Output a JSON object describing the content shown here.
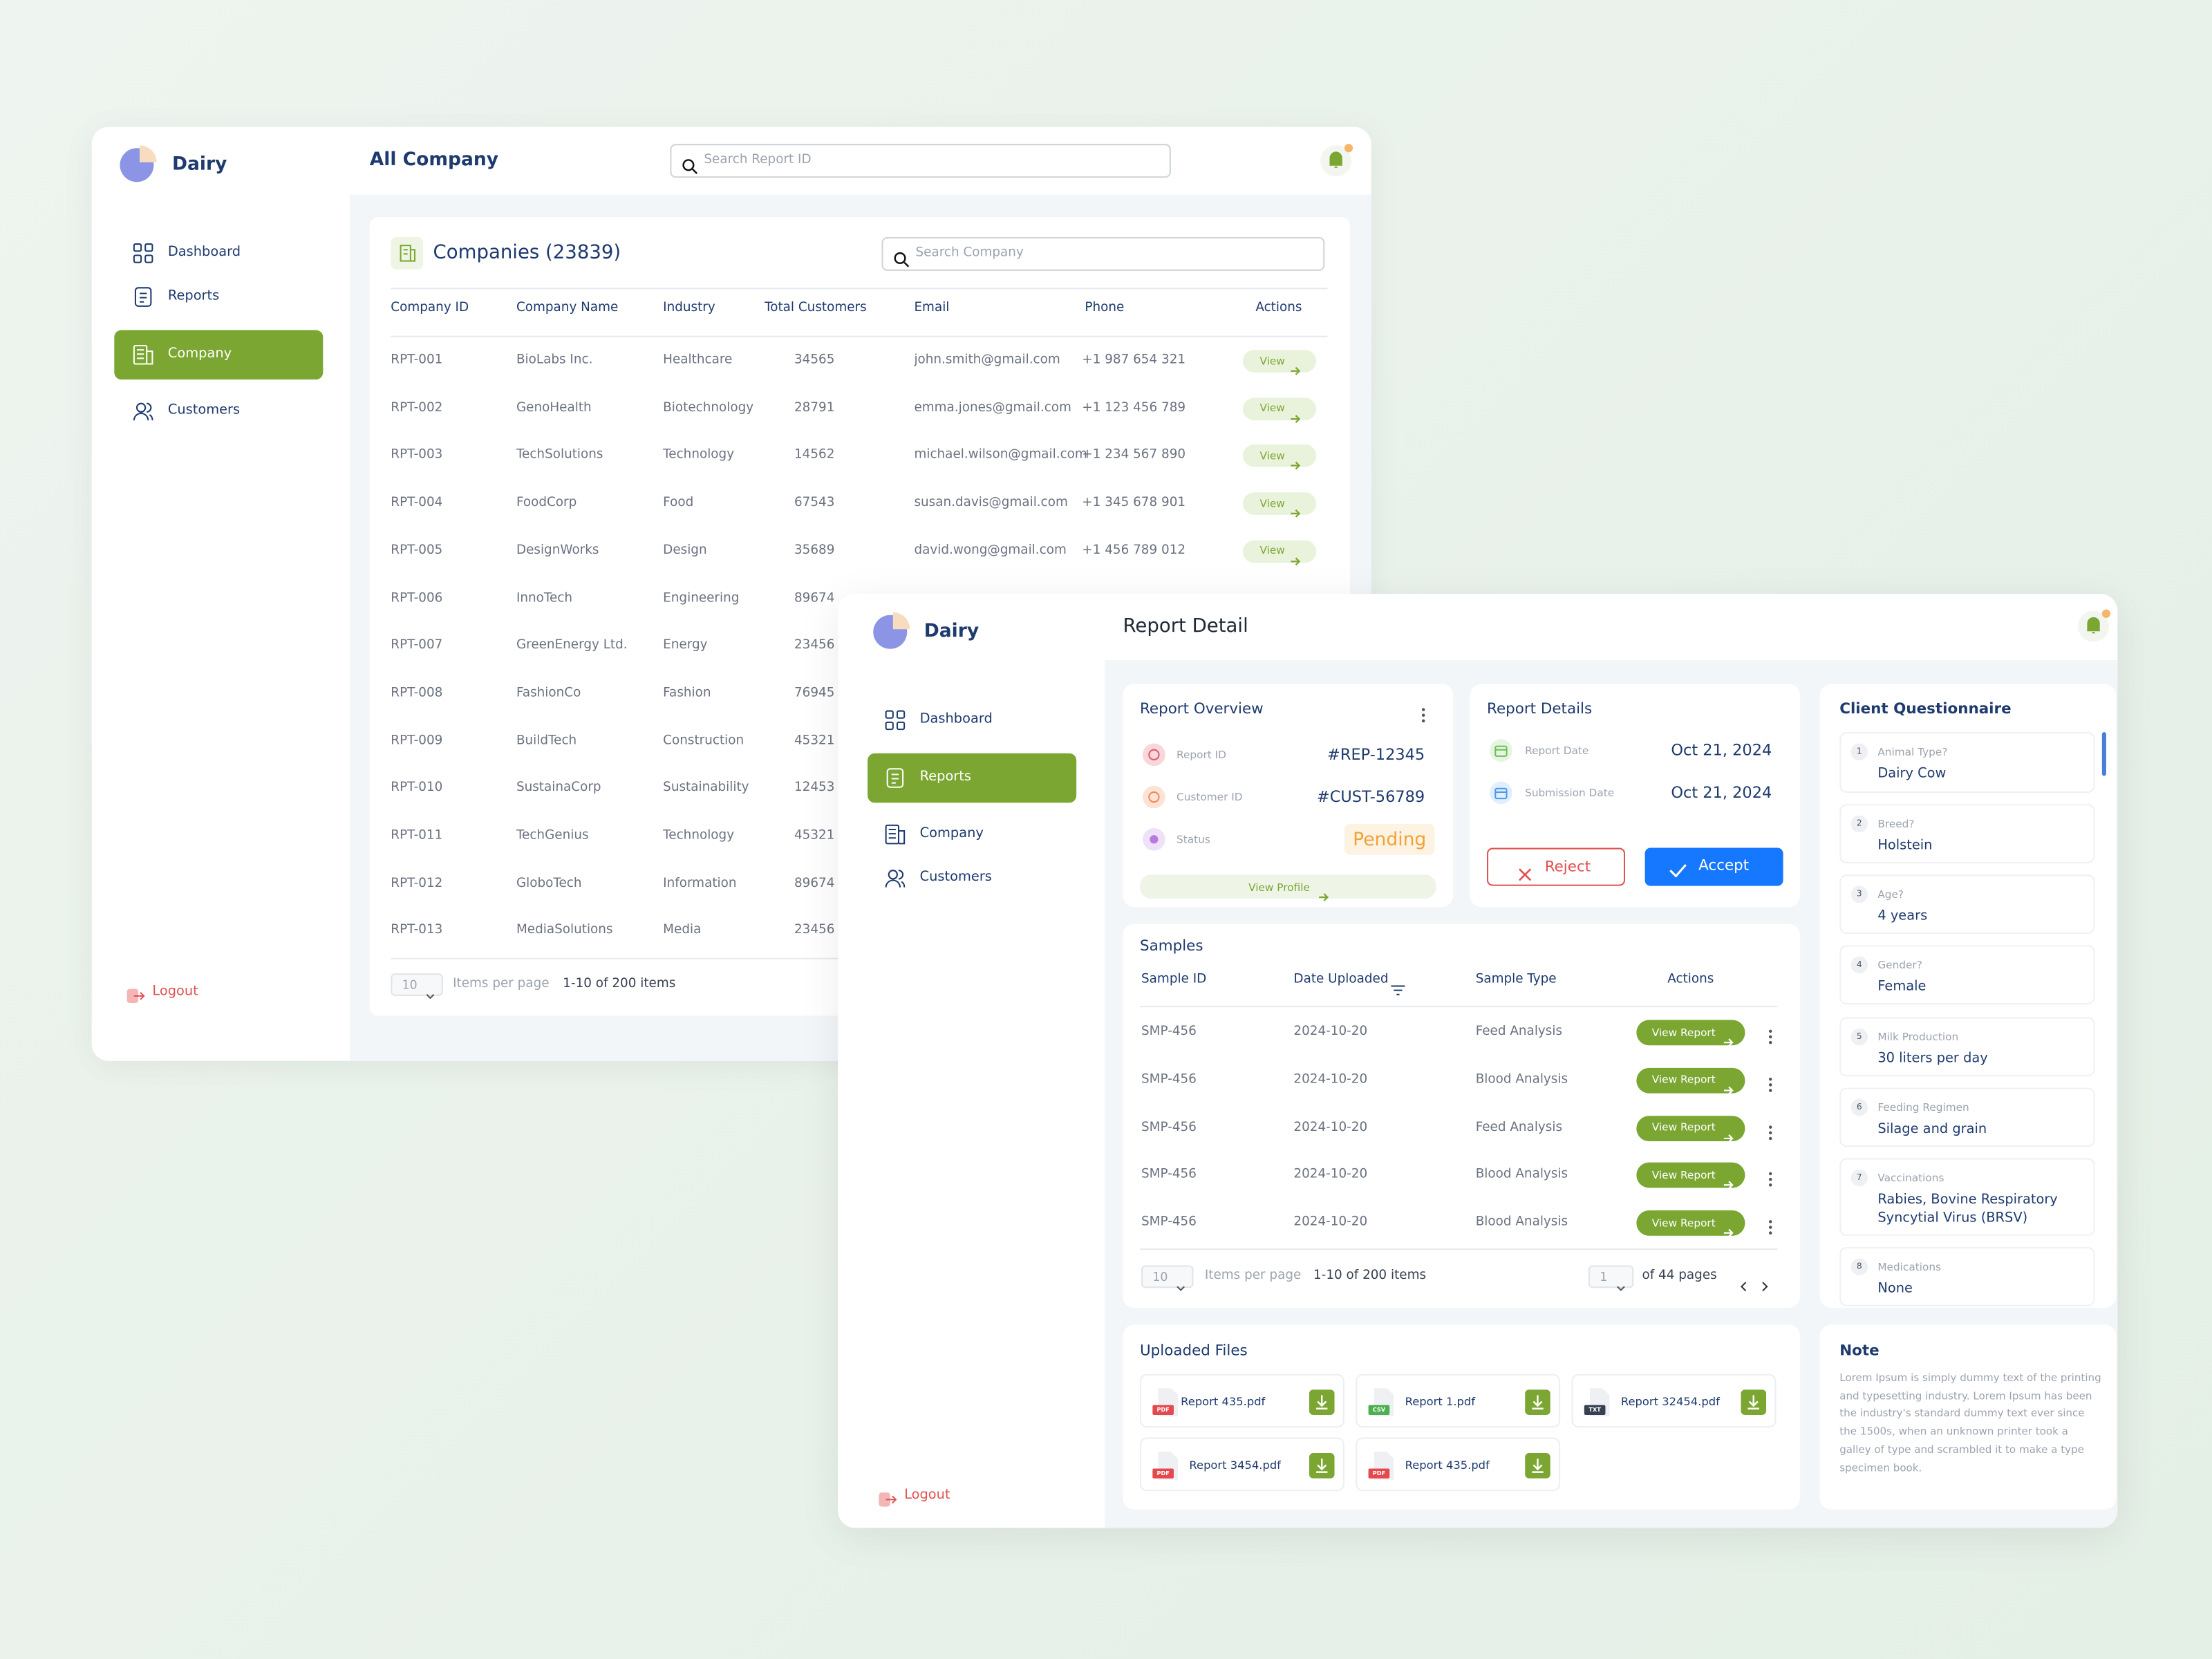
{
  "company_window": {
    "logo": "Dairy",
    "title": "All Company",
    "search": "Search Report ID",
    "nav": [
      {
        "label": "Dashboard"
      },
      {
        "label": "Reports"
      },
      {
        "label": "Company",
        "active": true
      },
      {
        "label": "Customers"
      }
    ],
    "logout": "Logout",
    "card_title": "Companies (23839)",
    "card_search": "Search Company",
    "columns": [
      "Company ID",
      "Company Name",
      "Industry",
      "Total Customers",
      "Email",
      "Phone",
      "Actions"
    ],
    "rows": [
      [
        "RPT-001",
        "BioLabs Inc.",
        "Healthcare",
        "34565",
        "john.smith@gmail.com",
        "+1 987 654 321"
      ],
      [
        "RPT-002",
        "GenoHealth",
        "Biotechnology",
        "28791",
        "emma.jones@gmail.com",
        "+1 123 456 789"
      ],
      [
        "RPT-003",
        "TechSolutions",
        "Technology",
        "14562",
        "michael.wilson@gmail.com",
        "+1 234 567 890"
      ],
      [
        "RPT-004",
        "FoodCorp",
        "Food",
        "67543",
        "susan.davis@gmail.com",
        "+1 345 678 901"
      ],
      [
        "RPT-005",
        "DesignWorks",
        "Design",
        "35689",
        "david.wong@gmail.com",
        "+1 456 789 012"
      ],
      [
        "RPT-006",
        "InnoTech",
        "Engineering",
        "89674"
      ],
      [
        "RPT-007",
        "GreenEnergy Ltd.",
        "Energy",
        "23456"
      ],
      [
        "RPT-008",
        "FashionCo",
        "Fashion",
        "76945"
      ],
      [
        "RPT-009",
        "BuildTech",
        "Construction",
        "45321"
      ],
      [
        "RPT-010",
        "SustainaCorp",
        "Sustainability",
        "12453"
      ],
      [
        "RPT-011",
        "TechGenius",
        "Technology",
        "45321"
      ],
      [
        "RPT-012",
        "GloboTech",
        "Information",
        "89674"
      ],
      [
        "RPT-013",
        "MediaSolutions",
        "Media",
        "23456"
      ]
    ],
    "action": "View",
    "per_page": "10",
    "per_page_label": "Items per page",
    "range": "1-10 of 200 items"
  },
  "report_window": {
    "logo": "Dairy",
    "title": "Report Detail",
    "nav": [
      {
        "label": "Dashboard"
      },
      {
        "label": "Reports",
        "active": true
      },
      {
        "label": "Company"
      },
      {
        "label": "Customers"
      }
    ],
    "logout": "Logout",
    "overview": {
      "title": "Report Overview",
      "rows": [
        {
          "label": "Report ID",
          "value": "#REP-12345"
        },
        {
          "label": "Customer ID",
          "value": "#CUST-56789"
        },
        {
          "label": "Status",
          "value": "Pending"
        }
      ],
      "link": "View Profile"
    },
    "details": {
      "title": "Report Details",
      "rows": [
        {
          "label": "Report Date",
          "value": "Oct 21, 2024"
        },
        {
          "label": "Submission Date",
          "value": "Oct 21, 2024"
        }
      ],
      "reject": "Reject",
      "accept": "Accept"
    },
    "samples": {
      "title": "Samples",
      "columns": [
        "Sample ID",
        "Date Uploaded",
        "Sample Type",
        "Actions"
      ],
      "rows": [
        [
          "SMP-456",
          "2024-10-20",
          "Feed Analysis"
        ],
        [
          "SMP-456",
          "2024-10-20",
          "Blood Analysis"
        ],
        [
          "SMP-456",
          "2024-10-20",
          "Feed Analysis"
        ],
        [
          "SMP-456",
          "2024-10-20",
          "Blood Analysis"
        ],
        [
          "SMP-456",
          "2024-10-20",
          "Blood Analysis"
        ]
      ],
      "action": "View Report",
      "per_page": "10",
      "per_page_label": "Items per page",
      "range": "1-10 of 200 items",
      "page": "1",
      "pages": "of 44 pages"
    },
    "files": {
      "title": "Uploaded Files",
      "items": [
        {
          "name": "Report 435.pdf",
          "type": "PDF"
        },
        {
          "name": "Report 1.pdf",
          "type": "CSV"
        },
        {
          "name": "Report 32454.pdf",
          "type": "TXT"
        },
        {
          "name": "Report 3454.pdf",
          "type": "PDF"
        },
        {
          "name": "Report 435.pdf",
          "type": "PDF"
        }
      ]
    },
    "questionnaire": {
      "title": "Client Questionnaire",
      "items": [
        {
          "num": "1",
          "question": "Animal Type?",
          "answer": "Dairy Cow"
        },
        {
          "num": "2",
          "question": "Breed?",
          "answer": "Holstein"
        },
        {
          "num": "3",
          "question": "Age?",
          "answer": "4 years"
        },
        {
          "num": "4",
          "question": "Gender?",
          "answer": "Female"
        },
        {
          "num": "5",
          "question": "Milk Production",
          "answer": "30 liters per day"
        },
        {
          "num": "6",
          "question": "Feeding Regimen",
          "answer": "Silage and grain"
        },
        {
          "num": "7",
          "question": "Vaccinations",
          "answer": "Rabies, Bovine Respiratory Syncytial Virus (BRSV)"
        },
        {
          "num": "8",
          "question": "Medications",
          "answer": "None"
        }
      ]
    },
    "note": {
      "title": "Note",
      "text": "Lorem Ipsum is simply dummy text of the printing and typesetting industry. Lorem Ipsum has been the industry's standard dummy text ever since the 1500s, when an unknown printer took a galley of type and scrambled it to make a type specimen book."
    }
  }
}
